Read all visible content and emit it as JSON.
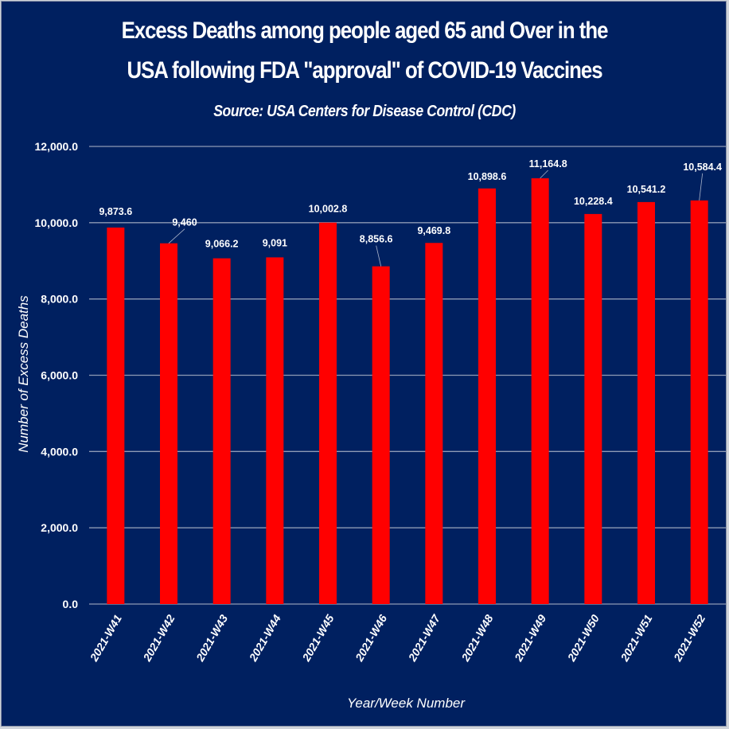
{
  "chart_data": {
    "type": "bar",
    "title_lines": [
      "Excess Deaths among people aged 65 and Over in the",
      "USA following FDA \"approval\" of COVID-19 Vaccines"
    ],
    "subtitle": "Source: USA Centers for Disease Control (CDC)",
    "xlabel": "Year/Week Number",
    "ylabel": "Number of Excess Deaths",
    "categories": [
      "2021-W41",
      "2021-W42",
      "2021-W43",
      "2021-W44",
      "2021-W45",
      "2021-W46",
      "2021-W47",
      "2021-W48",
      "2021-W49",
      "2021-W50",
      "2021-W51",
      "2021-W52"
    ],
    "values": [
      9873.6,
      9460,
      9066.2,
      9091,
      10002.8,
      8856.6,
      9469.8,
      10898.6,
      11164.8,
      10228.4,
      10541.2,
      10584.4
    ],
    "data_labels": [
      "9,873.6",
      "9,460",
      "9,066.2",
      "9,091",
      "10,002.8",
      "8,856.6",
      "9,469.8",
      "10,898.6",
      "11,164.8",
      "10,228.4",
      "10,541.2",
      "10,584.4"
    ],
    "ylim": [
      0,
      12000
    ],
    "yticks": [
      0,
      2000,
      4000,
      6000,
      8000,
      10000,
      12000
    ],
    "ytick_labels": [
      "0.0",
      "2,000.0",
      "4,000.0",
      "6,000.0",
      "8,000.0",
      "10,000.0",
      "12,000.0"
    ],
    "grid": true,
    "legend": "none",
    "colors": {
      "background": "#002060",
      "bar": "#ff0000",
      "text": "#ffffff",
      "gridline": "#8e9ab5"
    }
  }
}
